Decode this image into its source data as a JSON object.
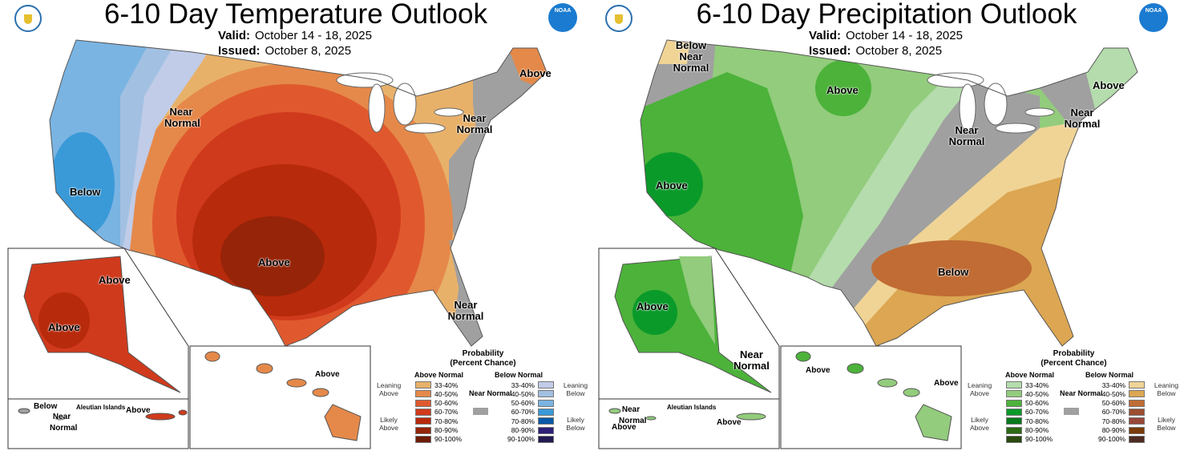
{
  "temperature": {
    "title": "6-10 Day Temperature Outlook",
    "valid_label": "Valid:",
    "valid": "October 14 - 18, 2025",
    "issued_label": "Issued:",
    "issued": "October 8, 2025",
    "labels": {
      "below_west": "Below",
      "near_nw": "Near Normal",
      "above_central": "Above",
      "above_ne": "Above",
      "near_ne": "Near Normal",
      "near_fl": "Near Normal",
      "ak_above_1": "Above",
      "ak_above_2": "Above",
      "aleut_below": "Below",
      "aleut_near": "Near Normal",
      "aleut_islands": "Aleutian Islands",
      "aleut_above": "Above",
      "hi_above": "Above"
    },
    "legend": {
      "title": "Probability",
      "subtitle": "(Percent Chance)",
      "above_header": "Above Normal",
      "below_header": "Below Normal",
      "near": "Near Normal",
      "near_color": "#a0a0a0",
      "leaning_above": "Leaning Above",
      "likely_above": "Likely Above",
      "leaning_below": "Leaning Below",
      "likely_below": "Likely Below",
      "above": [
        {
          "range": "33-40%",
          "color": "#e8b16a"
        },
        {
          "range": "40-50%",
          "color": "#e5894a"
        },
        {
          "range": "50-60%",
          "color": "#e0592e"
        },
        {
          "range": "60-70%",
          "color": "#d03a1c"
        },
        {
          "range": "70-80%",
          "color": "#b82a0c"
        },
        {
          "range": "80-90%",
          "color": "#962408"
        },
        {
          "range": "90-100%",
          "color": "#6e1c08"
        }
      ],
      "below": [
        {
          "range": "33-40%",
          "color": "#c0cce8"
        },
        {
          "range": "40-50%",
          "color": "#a2c0e2"
        },
        {
          "range": "50-60%",
          "color": "#7ab4e2"
        },
        {
          "range": "60-70%",
          "color": "#3a9ad8"
        },
        {
          "range": "70-80%",
          "color": "#0a5aa8"
        },
        {
          "range": "80-90%",
          "color": "#2c207a"
        },
        {
          "range": "90-100%",
          "color": "#221a52"
        }
      ]
    }
  },
  "precipitation": {
    "title": "6-10 Day Precipitation Outlook",
    "valid_label": "Valid:",
    "valid": "October 14 - 18, 2025",
    "issued_label": "Issued:",
    "issued": "October 8, 2025",
    "labels": {
      "below_near_nw": "Below Near Normal",
      "above_north": "Above",
      "above_ne": "Above",
      "near_ne": "Near Normal",
      "near_ohio": "Near Normal",
      "above_ca": "Above",
      "below_se": "Below",
      "ak_above": "Above",
      "ak_near": "Near Normal",
      "hi_above_1": "Above",
      "hi_above_2": "Above",
      "aleut_near": "Near Normal",
      "aleut_above_1": "Above",
      "aleut_islands": "Aleutian Islands",
      "aleut_above_2": "Above"
    },
    "legend": {
      "title": "Probability",
      "subtitle": "(Percent Chance)",
      "above_header": "Above Normal",
      "below_header": "Below Normal",
      "near": "Near Normal",
      "near_color": "#a0a0a0",
      "leaning_above": "Leaning Above",
      "likely_above": "Likely Above",
      "leaning_below": "Leaning Below",
      "likely_below": "Likely Below",
      "above": [
        {
          "range": "33-40%",
          "color": "#b4dcac"
        },
        {
          "range": "40-50%",
          "color": "#92cc7c"
        },
        {
          "range": "50-60%",
          "color": "#4cb23a"
        },
        {
          "range": "60-70%",
          "color": "#0a9a2a"
        },
        {
          "range": "70-80%",
          "color": "#087a1c"
        },
        {
          "range": "80-90%",
          "color": "#2c6a14"
        },
        {
          "range": "90-100%",
          "color": "#2a4a10"
        }
      ],
      "below": [
        {
          "range": "33-40%",
          "color": "#f0d496"
        },
        {
          "range": "40-50%",
          "color": "#dca652"
        },
        {
          "range": "50-60%",
          "color": "#c06c34"
        },
        {
          "range": "60-70%",
          "color": "#9c4e30"
        },
        {
          "range": "70-80%",
          "color": "#984838"
        },
        {
          "range": "80-90%",
          "color": "#7a3c08"
        },
        {
          "range": "90-100%",
          "color": "#4e2c24"
        }
      ]
    }
  }
}
